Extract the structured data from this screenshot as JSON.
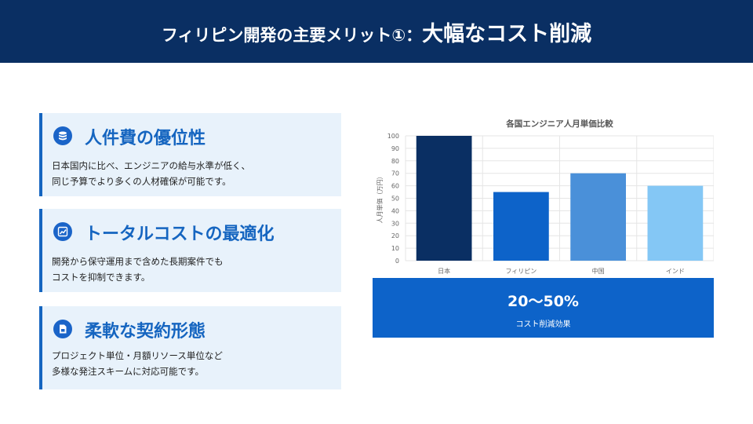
{
  "header": {
    "title_main": "フィリピン開発の主要メリット①：",
    "title_emph": "大幅なコスト削減"
  },
  "cards": [
    {
      "icon": "coins-icon",
      "title": "人件費の優位性",
      "lines": [
        "日本国内に比べ、エンジニアの給与水準が低く、",
        "同じ予算でより多くの人材確保が可能です。"
      ]
    },
    {
      "icon": "chart-line-icon",
      "title": "トータルコストの最適化",
      "lines": [
        "開発から保守運用まで含めた長期案件でも",
        "コストを抑制できます。"
      ]
    },
    {
      "icon": "document-icon",
      "title": "柔軟な契約形態",
      "lines": [
        "プロジェクト単位・月額リソース単位など",
        "多様な発注スキームに対応可能です。"
      ]
    }
  ],
  "chart_data": {
    "type": "bar",
    "title": "各国エンジニア人月単価比較",
    "ylabel": "人月単価（万円）",
    "xlabel": "",
    "categories": [
      "日本",
      "フィリピン",
      "中国",
      "インド"
    ],
    "values": [
      100,
      55,
      70,
      60
    ],
    "colors": [
      "#0a2f63",
      "#0d63c9",
      "#4a90d9",
      "#84c7f5"
    ],
    "ylim": [
      0,
      100
    ],
    "yticks": [
      "0",
      "10",
      "20",
      "30",
      "40",
      "50",
      "60",
      "70",
      "80",
      "90",
      "100"
    ],
    "grid": true,
    "legend": "none"
  },
  "stat": {
    "value": "20〜50%",
    "label": "コスト削減効果"
  }
}
